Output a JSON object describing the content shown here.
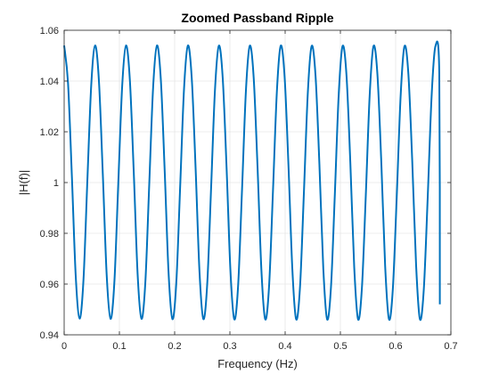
{
  "chart_data": {
    "type": "line",
    "title": "Zoomed Passband Ripple",
    "xlabel": "Frequency (Hz)",
    "ylabel": "|H(f)|",
    "xlim": [
      0,
      0.7
    ],
    "ylim": [
      0.94,
      1.06
    ],
    "xticks": [
      0,
      0.1,
      0.2,
      0.3,
      0.4,
      0.5,
      0.6,
      0.7
    ],
    "xtick_labels": [
      "0",
      "0.1",
      "0.2",
      "0.3",
      "0.4",
      "0.5",
      "0.6",
      "0.7"
    ],
    "yticks": [
      0.94,
      0.96,
      0.98,
      1.0,
      1.02,
      1.04,
      1.06
    ],
    "ytick_labels": [
      "0.94",
      "0.96",
      "0.98",
      "1",
      "1.02",
      "1.04",
      "1.06"
    ],
    "grid": true,
    "series": [
      {
        "color": "#0072BD",
        "x": [
          0.0,
          0.007,
          0.014,
          0.021,
          0.028,
          0.035,
          0.042,
          0.049,
          0.056,
          0.063,
          0.07,
          0.077,
          0.084,
          0.091,
          0.098,
          0.105,
          0.112,
          0.119,
          0.126,
          0.133,
          0.14,
          0.147,
          0.154,
          0.161,
          0.168,
          0.175,
          0.182,
          0.189,
          0.196,
          0.203,
          0.21,
          0.217,
          0.224,
          0.231,
          0.238,
          0.245,
          0.252,
          0.259,
          0.266,
          0.273,
          0.28,
          0.287,
          0.294,
          0.301,
          0.308,
          0.315,
          0.322,
          0.329,
          0.336,
          0.343,
          0.35,
          0.357,
          0.364,
          0.371,
          0.378,
          0.385,
          0.392,
          0.399,
          0.406,
          0.413,
          0.42,
          0.427,
          0.434,
          0.441,
          0.448,
          0.455,
          0.462,
          0.469,
          0.476,
          0.483,
          0.49,
          0.497,
          0.504,
          0.511,
          0.518,
          0.525,
          0.532,
          0.539,
          0.546,
          0.553,
          0.56,
          0.567,
          0.574,
          0.581,
          0.588,
          0.595,
          0.602,
          0.609,
          0.616,
          0.623,
          0.63,
          0.637,
          0.644,
          0.651,
          0.658,
          0.665,
          0.672,
          0.679,
          0.68
        ],
        "y": [
          1.054,
          1.0392,
          1.0023,
          0.9629,
          0.9464,
          0.9618,
          1.0008,
          1.0383,
          1.054,
          1.0398,
          1.0031,
          0.9635,
          0.9463,
          0.9612,
          0.9999,
          1.0379,
          1.054,
          1.0401,
          1.004,
          0.9638,
          0.9463,
          0.9609,
          0.9992,
          1.0374,
          1.054,
          1.0405,
          1.0045,
          0.9644,
          0.9462,
          0.9606,
          0.9985,
          1.037,
          1.054,
          1.0409,
          1.0052,
          0.9647,
          0.9462,
          0.9602,
          0.998,
          1.0365,
          1.0539,
          1.0412,
          1.0058,
          0.9652,
          0.9461,
          0.9598,
          0.9974,
          1.0361,
          1.0539,
          1.0415,
          1.0063,
          0.9656,
          0.9461,
          0.9595,
          0.9968,
          1.0357,
          1.0539,
          1.0418,
          1.0068,
          0.966,
          0.9461,
          0.9592,
          0.9962,
          1.0352,
          1.0538,
          1.0421,
          1.0073,
          0.9664,
          0.9461,
          0.9589,
          0.9956,
          1.0348,
          1.0538,
          1.0424,
          1.0078,
          0.9668,
          0.9461,
          0.9586,
          0.995,
          1.0343,
          1.0538,
          1.0427,
          1.0083,
          0.9672,
          0.9461,
          0.9583,
          0.9944,
          1.0339,
          1.0537,
          1.043,
          1.0088,
          0.9676,
          0.9461,
          0.958,
          0.9938,
          1.0335,
          1.0537,
          1.0432,
          0.952
        ]
      }
    ]
  }
}
